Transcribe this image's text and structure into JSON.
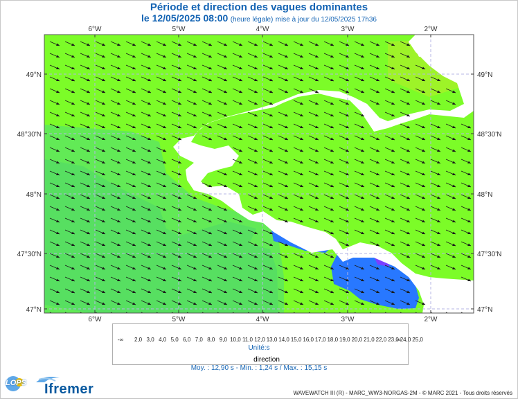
{
  "header": {
    "title": "Période et direction des vagues dominantes",
    "date": "le 12/05/2025 08:00",
    "legal_time": "(heure légale)",
    "update": "mise à jour du 12/05/2025 17h36"
  },
  "map": {
    "lon_labels_top": [
      "6°W",
      "5°W",
      "4°W",
      "3°W",
      "2°W"
    ],
    "lon_labels_bottom": [
      "6°W",
      "5°W",
      "4°W",
      "3°W",
      "2°W"
    ],
    "lat_labels": [
      "49°N",
      "48°30'N",
      "48°N",
      "47°30'N",
      "47°N"
    ],
    "sea_color": "#7cfc28",
    "offshore_color": "#5ee65e",
    "coastal_low_color": "#2878ff",
    "land_color": "#ffffff",
    "grid_color": "#b4b4e6"
  },
  "colorbar": {
    "labels": [
      "-∞",
      "2,0",
      "3,0",
      "4,0",
      "5,0",
      "6,0",
      "7,0",
      "8,0",
      "9,0",
      "10,0",
      "11,0",
      "12,0",
      "13,0",
      "14,0",
      "15,0",
      "16,0",
      "17,0",
      "18,0",
      "19,0",
      "20,0",
      "21,0",
      "22,0",
      "23,0",
      "24,0",
      "25,0",
      "∞"
    ],
    "colors": [
      "#a08cc8",
      "#b400ff",
      "#7800ff",
      "#3c3cff",
      "#1464ff",
      "#0096ff",
      "#00c8ff",
      "#00e6c8",
      "#00e66e",
      "#3ce63c",
      "#82f014",
      "#c8f000",
      "#f0f000",
      "#f0d200",
      "#f0b400",
      "#f09600",
      "#f07800",
      "#f05a00",
      "#f03c00",
      "#e61e00",
      "#d20000",
      "#b40000"
    ],
    "units": "Unité:s"
  },
  "legend": {
    "direction": "direction",
    "stats": "Moy. : 12,90 s   -   Min. : 1,24 s / Max. : 15,15 s"
  },
  "logos": {
    "lops": "LOPS",
    "ifremer": "Ifremer"
  },
  "credit": "WAVEWATCH III (R) - MARC_WW3-NORGAS-2M - © MARC 2021 - Tous droits réservés"
}
